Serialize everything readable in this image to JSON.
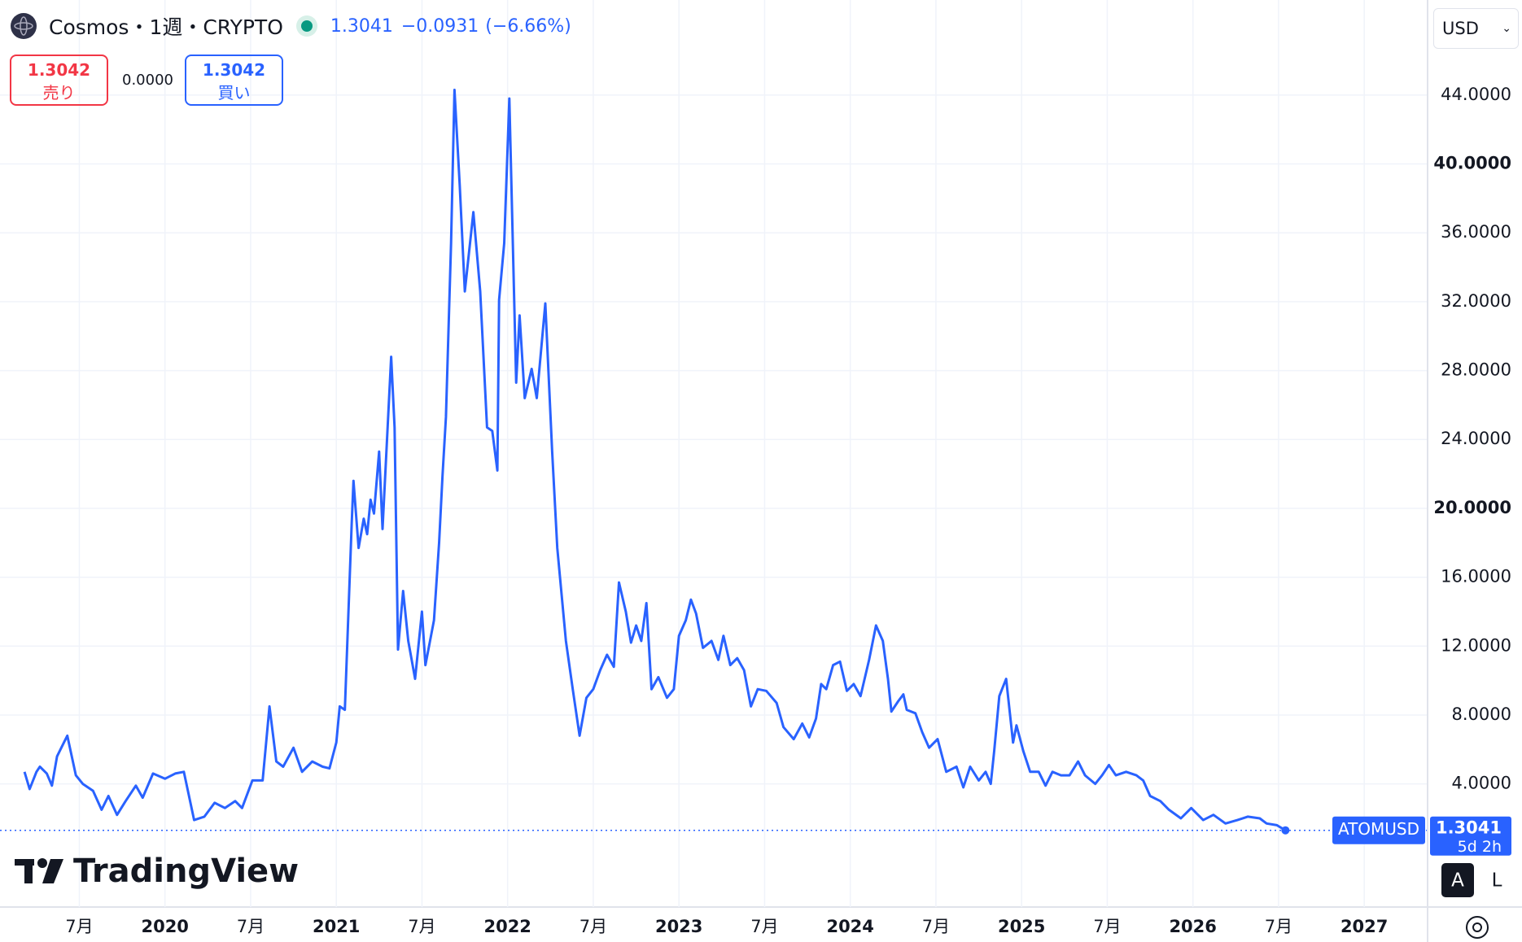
{
  "header": {
    "symbol_title": "Cosmos・1週・CRYPTO",
    "last": "1.3041",
    "change": "−0.0931",
    "change_pct": "(−6.66%)",
    "sell_price": "1.3042",
    "sell_label": "売り",
    "spread": "0.0000",
    "buy_price": "1.3042",
    "buy_label": "買い",
    "currency": "USD"
  },
  "chart_data": {
    "type": "line",
    "x": [
      2019.18,
      2019.21,
      2019.25,
      2019.27,
      2019.31,
      2019.34,
      2019.37,
      2019.41,
      2019.43,
      2019.48,
      2019.52,
      2019.58,
      2019.63,
      2019.67,
      2019.72,
      2019.77,
      2019.83,
      2019.87,
      2019.93,
      2020.0,
      2020.06,
      2020.11,
      2020.17,
      2020.23,
      2020.29,
      2020.35,
      2020.41,
      2020.45,
      2020.51,
      2020.57,
      2020.61,
      2020.65,
      2020.69,
      2020.75,
      2020.8,
      2020.86,
      2020.92,
      2020.96,
      2021.0,
      2021.02,
      2021.05,
      2021.09,
      2021.1,
      2021.13,
      2021.16,
      2021.18,
      2021.2,
      2021.22,
      2021.25,
      2021.27,
      2021.32,
      2021.34,
      2021.36,
      2021.39,
      2021.42,
      2021.46,
      2021.5,
      2021.52,
      2021.57,
      2021.6,
      2021.62,
      2021.64,
      2021.67,
      2021.69,
      2021.72,
      2021.75,
      2021.8,
      2021.84,
      2021.88,
      2021.91,
      2021.94,
      2021.95,
      2021.98,
      2022.01,
      2022.05,
      2022.07,
      2022.1,
      2022.14,
      2022.17,
      2022.22,
      2022.26,
      2022.29,
      2022.34,
      2022.38,
      2022.42,
      2022.46,
      2022.5,
      2022.54,
      2022.58,
      2022.62,
      2022.65,
      2022.69,
      2022.72,
      2022.75,
      2022.78,
      2022.81,
      2022.84,
      2022.88,
      2022.93,
      2022.97,
      2023.0,
      2023.04,
      2023.07,
      2023.1,
      2023.14,
      2023.19,
      2023.23,
      2023.26,
      2023.3,
      2023.34,
      2023.38,
      2023.42,
      2023.46,
      2023.51,
      2023.57,
      2023.61,
      2023.67,
      2023.72,
      2023.76,
      2023.8,
      2023.83,
      2023.86,
      2023.9,
      2023.94,
      2023.98,
      2024.02,
      2024.06,
      2024.11,
      2024.15,
      2024.19,
      2024.22,
      2024.24,
      2024.28,
      2024.31,
      2024.33,
      2024.38,
      2024.42,
      2024.46,
      2024.51,
      2024.56,
      2024.62,
      2024.66,
      2024.7,
      2024.75,
      2024.79,
      2024.82,
      2024.84,
      2024.87,
      2024.91,
      2024.95,
      2024.97,
      2025.01,
      2025.05,
      2025.1,
      2025.14,
      2025.18,
      2025.23,
      2025.28,
      2025.33,
      2025.37,
      2025.43,
      2025.47,
      2025.51,
      2025.55,
      2025.61,
      2025.67,
      2025.71,
      2025.75,
      2025.81,
      2025.86,
      2025.93,
      2025.99,
      2026.06,
      2026.12,
      2026.19,
      2026.26,
      2026.32,
      2026.39,
      2026.43,
      2026.49,
      2026.54
    ],
    "series": [
      {
        "name": "ATOMUSD",
        "color": "#2962ff",
        "values": [
          4.7,
          3.7,
          4.7,
          5.0,
          4.6,
          3.9,
          5.6,
          6.4,
          6.8,
          4.5,
          4.0,
          3.6,
          2.5,
          3.3,
          2.2,
          3.0,
          3.9,
          3.2,
          4.6,
          4.3,
          4.6,
          4.7,
          1.9,
          2.1,
          2.9,
          2.6,
          3.0,
          2.6,
          4.2,
          4.2,
          8.5,
          5.3,
          5.0,
          6.1,
          4.7,
          5.3,
          5.0,
          4.9,
          6.4,
          8.5,
          8.3,
          19.1,
          21.6,
          17.7,
          19.4,
          18.5,
          20.5,
          19.7,
          23.3,
          18.8,
          28.8,
          24.7,
          11.8,
          15.2,
          12.3,
          10.1,
          14.0,
          10.9,
          13.5,
          18.0,
          21.9,
          25.3,
          35.4,
          44.3,
          38.8,
          32.6,
          37.2,
          32.6,
          24.7,
          24.5,
          22.2,
          32.1,
          35.4,
          43.8,
          27.3,
          31.2,
          26.4,
          28.1,
          26.4,
          31.9,
          23.3,
          17.7,
          12.3,
          9.5,
          6.8,
          9.0,
          9.5,
          10.6,
          11.5,
          10.8,
          15.7,
          14.0,
          12.2,
          13.2,
          12.3,
          14.5,
          9.5,
          10.2,
          9.0,
          9.5,
          12.6,
          13.5,
          14.7,
          13.9,
          11.9,
          12.3,
          11.2,
          12.6,
          10.9,
          11.3,
          10.6,
          8.5,
          9.5,
          9.4,
          8.7,
          7.3,
          6.6,
          7.5,
          6.7,
          7.8,
          9.8,
          9.5,
          10.9,
          11.1,
          9.4,
          9.8,
          9.1,
          11.2,
          13.2,
          12.3,
          10.1,
          8.2,
          8.8,
          9.2,
          8.3,
          8.1,
          7.0,
          6.1,
          6.6,
          4.7,
          5.0,
          3.8,
          5.0,
          4.2,
          4.7,
          4.0,
          5.9,
          9.1,
          10.1,
          6.4,
          7.4,
          5.9,
          4.7,
          4.7,
          3.9,
          4.7,
          4.5,
          4.5,
          5.3,
          4.5,
          4.0,
          4.5,
          5.1,
          4.5,
          4.7,
          4.5,
          4.2,
          3.3,
          3.0,
          2.5,
          2.0,
          2.6,
          1.9,
          2.2,
          1.7,
          1.9,
          2.1,
          2.0,
          1.7,
          1.6,
          1.3041
        ]
      }
    ],
    "xlim": [
      2019.037,
      2027.365
    ],
    "xticks": [
      {
        "value": 2019.5,
        "label": "7月"
      },
      2020,
      {
        "value": 2020.5,
        "label": "7月"
      },
      2021,
      {
        "value": 2021.5,
        "label": "7月"
      },
      2022,
      {
        "value": 2022.5,
        "label": "7月"
      },
      2023,
      {
        "value": 2023.5,
        "label": "7月"
      },
      2024,
      {
        "value": 2024.5,
        "label": "7月"
      },
      2025,
      {
        "value": 2025.5,
        "label": "7月"
      },
      2026,
      {
        "value": 2026.5,
        "label": "7月"
      },
      2027
    ],
    "ylim": [
      -3.15,
      49.52
    ],
    "yticks": [
      {
        "value": 4,
        "label": "4.0000"
      },
      {
        "value": 8,
        "label": "8.0000"
      },
      {
        "value": 12,
        "label": "12.0000"
      },
      {
        "value": 16,
        "label": "16.0000"
      },
      {
        "value": 20,
        "label": "20.0000"
      },
      {
        "value": 24,
        "label": "24.0000"
      },
      {
        "value": 28,
        "label": "28.0000"
      },
      {
        "value": 32,
        "label": "32.0000"
      },
      {
        "value": 36,
        "label": "36.0000"
      },
      {
        "value": 40,
        "label": "40.0000"
      },
      {
        "value": 44,
        "label": "44.0000"
      }
    ],
    "grid": true,
    "countdown": "5d 2h",
    "scale_buttons": [
      "A",
      "L"
    ],
    "brand": "TradingView"
  }
}
